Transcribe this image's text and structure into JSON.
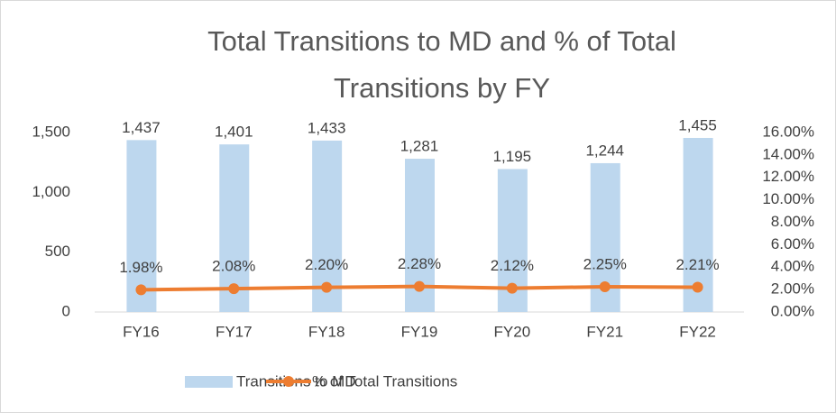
{
  "chart_data": {
    "type": "bar",
    "title": [
      "Total Transitions to MD and % of Total",
      "Transitions by FY"
    ],
    "categories": [
      "FY16",
      "FY17",
      "FY18",
      "FY19",
      "FY20",
      "FY21",
      "FY22"
    ],
    "series": [
      {
        "name": "Transitions to MD",
        "type": "bar",
        "color": "#bdd7ee",
        "values": [
          1437,
          1401,
          1433,
          1281,
          1195,
          1244,
          1455
        ],
        "value_labels": [
          "1,437",
          "1,401",
          "1,433",
          "1,281",
          "1,195",
          "1,244",
          "1,455"
        ]
      },
      {
        "name": "% of Total Transitions",
        "type": "line",
        "axis": "y2",
        "color": "#ed7d31",
        "values": [
          1.98,
          2.08,
          2.2,
          2.28,
          2.12,
          2.25,
          2.21
        ],
        "value_labels": [
          "1.98%",
          "2.08%",
          "2.20%",
          "2.28%",
          "2.12%",
          "2.25%",
          "2.21%"
        ]
      }
    ],
    "ylim": [
      0,
      1500
    ],
    "yticks": [
      0,
      500,
      {
        "value": 1000,
        "label": "1,000"
      },
      {
        "value": 1500,
        "label": "1,500"
      }
    ],
    "y2lim": [
      0,
      16
    ],
    "y2ticks": [
      {
        "value": 0,
        "label": "0.00%"
      },
      {
        "value": 2,
        "label": "2.00%"
      },
      {
        "value": 4,
        "label": "4.00%"
      },
      {
        "value": 6,
        "label": "6.00%"
      },
      {
        "value": 8,
        "label": "8.00%"
      },
      {
        "value": 10,
        "label": "10.00%"
      },
      {
        "value": 12,
        "label": "12.00%"
      },
      {
        "value": 14,
        "label": "14.00%"
      },
      {
        "value": 16,
        "label": "16.00%"
      }
    ],
    "grid": false,
    "legend": "bottom"
  }
}
